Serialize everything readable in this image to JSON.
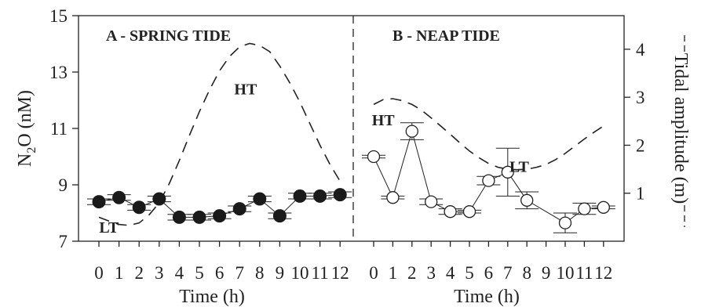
{
  "chart_data": {
    "type": "line",
    "y_left": {
      "label_main": "N",
      "label_sub": "2",
      "label_rest": "O (nM)",
      "ticks": [
        7,
        9,
        11,
        13,
        15
      ],
      "lim": [
        7,
        15
      ]
    },
    "y_right": {
      "label": "Tidal amplitude (m)",
      "ticks": [
        1,
        2,
        3,
        4
      ],
      "lim": [
        0,
        4.7
      ]
    },
    "panels": [
      {
        "title": "A - SPRING TIDE",
        "xlabel": "Time (h)",
        "x_ticks": [
          "0",
          "1",
          "2",
          "3",
          "4",
          "5",
          "6",
          "7",
          "8",
          "9",
          "10",
          "11",
          "12"
        ],
        "marker": "filled",
        "annotations": [
          {
            "text": "HT",
            "x": 7.3,
            "y": 12.4
          },
          {
            "text": "LT",
            "x": 0.5,
            "y": 7.5
          }
        ],
        "series": [
          {
            "name": "N2O",
            "x": [
              0,
              1,
              2,
              3,
              4,
              5,
              6,
              7,
              8,
              9,
              10,
              11,
              12
            ],
            "y": [
              8.4,
              8.55,
              8.2,
              8.5,
              7.85,
              7.85,
              7.9,
              8.15,
              8.5,
              7.9,
              8.6,
              8.6,
              8.65
            ],
            "err": [
              0.1,
              0.1,
              0.1,
              0.1,
              0.1,
              0.1,
              0.1,
              0.1,
              0.1,
              0.1,
              0.1,
              0.1,
              0.1
            ]
          },
          {
            "name": "Tidal amplitude",
            "x": [
              0,
              0.5,
              1,
              1.5,
              2,
              2.5,
              3,
              3.5,
              4,
              4.5,
              5,
              5.5,
              6,
              6.5,
              7,
              7.5,
              8,
              8.5,
              9,
              9.5,
              10,
              10.5,
              11,
              11.5,
              12
            ],
            "y": [
              0.5,
              0.42,
              0.35,
              0.33,
              0.38,
              0.55,
              0.8,
              1.2,
              1.68,
              2.2,
              2.7,
              3.15,
              3.55,
              3.85,
              4.05,
              4.12,
              4.08,
              3.95,
              3.65,
              3.3,
              2.9,
              2.45,
              2.0,
              1.6,
              1.25
            ]
          }
        ]
      },
      {
        "title": "B - NEAP TIDE",
        "xlabel": "Time (h)",
        "x_ticks": [
          "0",
          "1",
          "2",
          "3",
          "4",
          "5",
          "6",
          "7",
          "8",
          "9",
          "10",
          "11",
          "12"
        ],
        "marker": "open",
        "annotations": [
          {
            "text": "HT",
            "x": 0.5,
            "y": 11.3
          },
          {
            "text": "LT",
            "x": 7.6,
            "y": 9.65
          }
        ],
        "series": [
          {
            "name": "N2O",
            "x": [
              0,
              1,
              2,
              3,
              4,
              5,
              6,
              7,
              8,
              10,
              11,
              12
            ],
            "y": [
              10.0,
              8.55,
              10.9,
              8.4,
              8.05,
              8.05,
              9.15,
              9.45,
              8.45,
              7.65,
              8.15,
              8.2
            ],
            "err": [
              0.05,
              0.05,
              0.3,
              0.1,
              0.1,
              0.05,
              0.15,
              0.85,
              0.3,
              0.35,
              0.2,
              0.05
            ]
          },
          {
            "name": "Tidal amplitude",
            "x": [
              0,
              0.5,
              1,
              1.5,
              2,
              2.5,
              3,
              3.5,
              4,
              4.5,
              5,
              5.5,
              6,
              6.5,
              7,
              7.5,
              8,
              8.5,
              9,
              9.5,
              10,
              10.5,
              11,
              11.5,
              12
            ],
            "y": [
              2.85,
              2.95,
              2.97,
              2.93,
              2.85,
              2.73,
              2.57,
              2.4,
              2.23,
              2.05,
              1.88,
              1.74,
              1.62,
              1.54,
              1.5,
              1.49,
              1.5,
              1.54,
              1.6,
              1.7,
              1.83,
              1.98,
              2.13,
              2.27,
              2.4
            ]
          }
        ]
      }
    ]
  }
}
